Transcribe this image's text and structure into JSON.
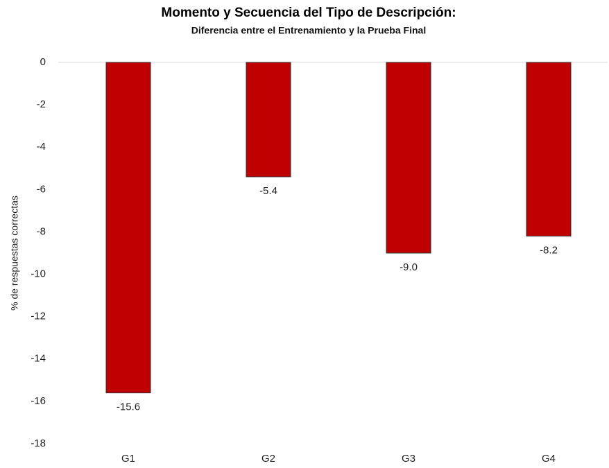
{
  "chart_data": {
    "type": "bar",
    "title": "Momento y Secuencia del Tipo de Descripción:",
    "subtitle": "Diferencia entre el Entrenamiento y la Prueba Final",
    "y_label": "% de respuestas correctas",
    "categories": [
      "G1",
      "G2",
      "G3",
      "G4"
    ],
    "values": [
      -15.6,
      -5.4,
      -9,
      -8.2
    ],
    "value_labels": [
      "-15.6",
      "-5.4",
      "-9.0",
      "-8.2"
    ],
    "color": "#c00000",
    "ylim": [
      -18,
      0
    ],
    "yticks": [
      0,
      -2,
      -4,
      -6,
      -8,
      -10,
      -12,
      -14,
      -16,
      -18
    ],
    "grid": false
  }
}
